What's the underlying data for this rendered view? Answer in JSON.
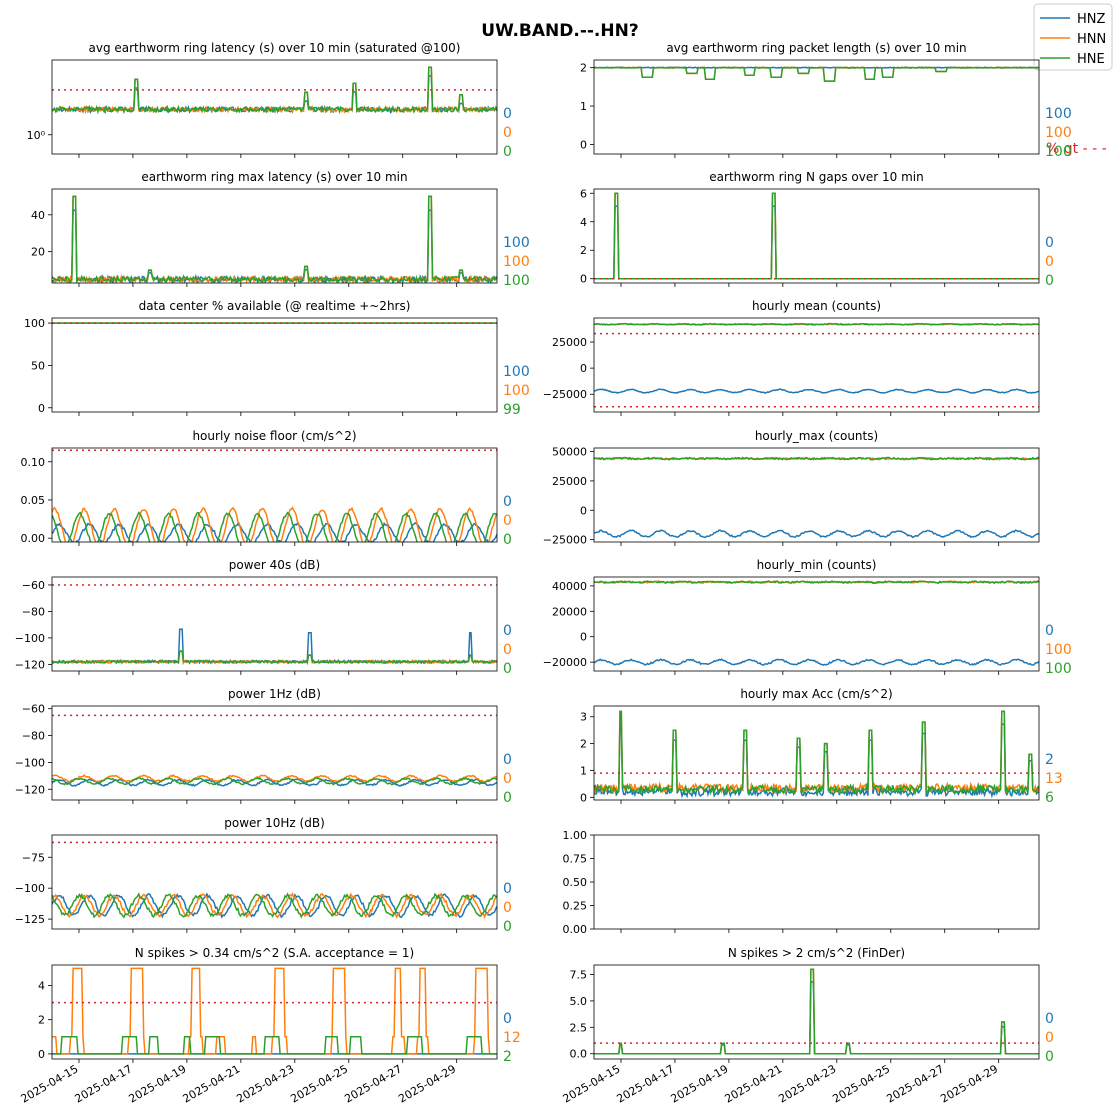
{
  "figure": {
    "title": "UW.BAND.--.HN?",
    "x_tick_labels": [
      "2025-04-15",
      "2025-04-17",
      "2025-04-19",
      "2025-04-21",
      "2025-04-23",
      "2025-04-25",
      "2025-04-27",
      "2025-04-29"
    ],
    "legend": [
      {
        "name": "HNZ",
        "color": "#1f77b4"
      },
      {
        "name": "HNN",
        "color": "#ff7f0e"
      },
      {
        "name": "HNE",
        "color": "#2ca02c"
      }
    ],
    "threshold_color": "#d62728",
    "note_text": "% gt - - -"
  },
  "chart_data": [
    {
      "type": "line",
      "title": "avg earthworm ring latency (s)   over 10 min (saturated @100)",
      "yscale": "log",
      "yticks": [
        {
          "label": "10⁰",
          "v": 1
        }
      ],
      "ylim": [
        0.7,
        4
      ],
      "threshold": 2.3,
      "base": [
        1.6,
        1.6,
        1.6
      ],
      "noise": 0.07,
      "spikes": [
        [
          0.19,
          2.8
        ],
        [
          0.57,
          2.2
        ],
        [
          0.68,
          2.6
        ],
        [
          0.85,
          3.5
        ],
        [
          0.92,
          2.1
        ]
      ],
      "pct": [
        "0",
        "0",
        "0"
      ]
    },
    {
      "type": "line",
      "title": "avg earthworm ring packet length (s)   over 10 min",
      "yticks": [
        {
          "label": "0",
          "v": 0
        },
        {
          "label": "1",
          "v": 1
        },
        {
          "label": "2",
          "v": 2
        }
      ],
      "ylim": [
        -0.25,
        2.2
      ],
      "base": [
        2.0,
        2.0,
        2.0
      ],
      "noise": 0.01,
      "dips": [
        [
          0.12,
          1.75
        ],
        [
          0.22,
          1.85
        ],
        [
          0.26,
          1.7
        ],
        [
          0.35,
          1.8
        ],
        [
          0.41,
          1.75
        ],
        [
          0.47,
          1.85
        ],
        [
          0.53,
          1.65
        ],
        [
          0.62,
          1.7
        ],
        [
          0.66,
          1.75
        ],
        [
          0.78,
          1.9
        ]
      ],
      "pct": [
        "100",
        "100",
        "100"
      ]
    },
    {
      "type": "line",
      "title": "earthworm ring max latency (s)   over 10 min",
      "yticks": [
        {
          "label": "20",
          "v": 20
        },
        {
          "label": "40",
          "v": 40
        }
      ],
      "ylim": [
        3,
        54
      ],
      "base": [
        5,
        5,
        5
      ],
      "noise": 1.5,
      "spikes": [
        [
          0.05,
          50
        ],
        [
          0.85,
          50
        ],
        [
          0.22,
          10
        ],
        [
          0.57,
          12
        ],
        [
          0.92,
          10
        ]
      ],
      "pct": [
        "100",
        "100",
        "100"
      ]
    },
    {
      "type": "line",
      "title": "earthworm ring N gaps   over 10 min",
      "yticks": [
        {
          "label": "0",
          "v": 0
        },
        {
          "label": "2",
          "v": 2
        },
        {
          "label": "4",
          "v": 4
        },
        {
          "label": "6",
          "v": 6
        }
      ],
      "ylim": [
        -0.3,
        6.3
      ],
      "threshold": 0,
      "base": [
        0,
        0,
        0
      ],
      "noise": 0,
      "spikes": [
        [
          0.05,
          6
        ],
        [
          0.405,
          6
        ]
      ],
      "pct": [
        "0",
        "0",
        "0"
      ]
    },
    {
      "type": "line",
      "title": "data center % available (@ realtime +~2hrs)",
      "yticks": [
        {
          "label": "0",
          "v": 0
        },
        {
          "label": "50",
          "v": 50
        },
        {
          "label": "100",
          "v": 100
        }
      ],
      "ylim": [
        -5,
        106
      ],
      "threshold": 100,
      "base": [
        100,
        100,
        100
      ],
      "noise": 0,
      "pct": [
        "100",
        "100",
        "99"
      ]
    },
    {
      "type": "line",
      "title": "hourly mean (counts)",
      "yticks": [
        {
          "label": "−25000",
          "v": -25000
        },
        {
          "label": "0",
          "v": 0
        },
        {
          "label": "25000",
          "v": 25000
        }
      ],
      "ylim": [
        -42000,
        48000
      ],
      "threshold": [
        33000,
        -37000
      ],
      "base": [
        -22000,
        42000,
        42000
      ],
      "noise": 400,
      "wave": [
        [
          1500,
          0
        ],
        [
          300,
          0
        ],
        [
          300,
          0
        ]
      ],
      "pct": [
        "",
        "",
        ""
      ]
    },
    {
      "type": "line",
      "title": "hourly noise floor (cm/s^2)",
      "yticks": [
        {
          "label": "0.00",
          "v": 0
        },
        {
          "label": "0.05",
          "v": 0.05
        },
        {
          "label": "0.10",
          "v": 0.1
        }
      ],
      "ylim": [
        -0.005,
        0.118
      ],
      "threshold": 0.115,
      "base": [
        0.006,
        0.013,
        0.01
      ],
      "noise": 0.002,
      "wave": [
        [
          0.012,
          0
        ],
        [
          0.025,
          0
        ],
        [
          0.022,
          0
        ]
      ],
      "pct": [
        "0",
        "0",
        "0"
      ]
    },
    {
      "type": "line",
      "title": "hourly_max (counts)",
      "yticks": [
        {
          "label": "−25000",
          "v": -25000
        },
        {
          "label": "0",
          "v": 0
        },
        {
          "label": "25000",
          "v": 25000
        },
        {
          "label": "50000",
          "v": 50000
        }
      ],
      "ylim": [
        -27000,
        53000
      ],
      "base": [
        -20000,
        44000,
        44000
      ],
      "noise": 700,
      "wave": [
        [
          2500,
          0
        ],
        [
          300,
          0
        ],
        [
          300,
          0
        ]
      ],
      "pct": [
        "",
        "",
        ""
      ]
    },
    {
      "type": "line",
      "title": "power 40s (dB)",
      "yticks": [
        {
          "label": "−120",
          "v": -120
        },
        {
          "label": "−100",
          "v": -100
        },
        {
          "label": "−80",
          "v": -80
        },
        {
          "label": "−60",
          "v": -60
        }
      ],
      "ylim": [
        -125,
        -54
      ],
      "threshold": -60,
      "base": [
        -118,
        -118,
        -118
      ],
      "noise": 1,
      "spikes": [
        [
          0.29,
          -110
        ],
        [
          0.58,
          -113
        ],
        [
          0.94,
          -113
        ]
      ],
      "pct": [
        "0",
        "0",
        "0"
      ]
    },
    {
      "type": "line",
      "title": "hourly_min (counts)",
      "yticks": [
        {
          "label": "−20000",
          "v": -20000
        },
        {
          "label": "0",
          "v": 0
        },
        {
          "label": "20000",
          "v": 20000
        },
        {
          "label": "40000",
          "v": 40000
        }
      ],
      "ylim": [
        -27000,
        47000
      ],
      "base": [
        -20000,
        43000,
        43000
      ],
      "noise": 600,
      "wave": [
        [
          1800,
          0
        ],
        [
          300,
          0
        ],
        [
          300,
          0
        ]
      ],
      "pct": [
        "0",
        "100",
        "100"
      ]
    },
    {
      "type": "line",
      "title": "power 1Hz (dB)",
      "yticks": [
        {
          "label": "−120",
          "v": -120
        },
        {
          "label": "−100",
          "v": -100
        },
        {
          "label": "−80",
          "v": -80
        },
        {
          "label": "−60",
          "v": -60
        }
      ],
      "ylim": [
        -128,
        -58
      ],
      "threshold": -65,
      "base": [
        -115,
        -112,
        -114
      ],
      "noise": 0.6,
      "wave": [
        [
          2,
          0
        ],
        [
          2,
          0
        ],
        [
          2,
          0
        ]
      ],
      "pct": [
        "0",
        "0",
        "0"
      ]
    },
    {
      "type": "line",
      "title": "hourly max Acc (cm/s^2)",
      "yticks": [
        {
          "label": "0",
          "v": 0
        },
        {
          "label": "1",
          "v": 1
        },
        {
          "label": "2",
          "v": 2
        },
        {
          "label": "3",
          "v": 3
        }
      ],
      "ylim": [
        -0.1,
        3.4
      ],
      "threshold": 0.9,
      "base": [
        0.2,
        0.35,
        0.3
      ],
      "noise": 0.15,
      "spikes": [
        [
          0.06,
          3.2
        ],
        [
          0.18,
          2.5
        ],
        [
          0.34,
          2.5
        ],
        [
          0.46,
          2.2
        ],
        [
          0.52,
          2.0
        ],
        [
          0.62,
          2.5
        ],
        [
          0.74,
          2.8
        ],
        [
          0.92,
          3.2
        ],
        [
          0.98,
          1.6
        ]
      ],
      "pct": [
        "2",
        "13",
        "6"
      ]
    },
    {
      "type": "line",
      "title": "power 10Hz (dB)",
      "yticks": [
        {
          "label": "−125",
          "v": -125
        },
        {
          "label": "−100",
          "v": -100
        },
        {
          "label": "−75",
          "v": -75
        }
      ],
      "ylim": [
        -133,
        -57
      ],
      "threshold": -63,
      "base": [
        -114,
        -114,
        -114
      ],
      "noise": 1.5,
      "wave": [
        [
          8,
          0
        ],
        [
          8,
          0
        ],
        [
          8,
          0
        ]
      ],
      "pct": [
        "0",
        "0",
        "0"
      ]
    },
    {
      "type": "line",
      "title": "",
      "yticks": [
        {
          "label": "0.00",
          "v": 0
        },
        {
          "label": "0.25",
          "v": 0.25
        },
        {
          "label": "0.50",
          "v": 0.5
        },
        {
          "label": "0.75",
          "v": 0.75
        },
        {
          "label": "1.00",
          "v": 1
        }
      ],
      "ylim": [
        0,
        1
      ],
      "empty": true,
      "pct": [
        "",
        "",
        ""
      ]
    },
    {
      "type": "line",
      "title": "N spikes > 0.34 cm/s^2 (S.A. acceptance = 1)",
      "yticks": [
        {
          "label": "0",
          "v": 0
        },
        {
          "label": "2",
          "v": 2
        },
        {
          "label": "4",
          "v": 4
        }
      ],
      "ylim": [
        -0.3,
        5.2
      ],
      "threshold": 3,
      "base": [
        0,
        0.3,
        0.2
      ],
      "noise": 0,
      "pulses": true,
      "pct": [
        "0",
        "12",
        "2"
      ]
    },
    {
      "type": "line",
      "title": "N spikes > 2 cm/s^2 (FinDer)",
      "yticks": [
        {
          "label": "0.0",
          "v": 0
        },
        {
          "label": "2.5",
          "v": 2.5
        },
        {
          "label": "5.0",
          "v": 5
        },
        {
          "label": "7.5",
          "v": 7.5
        }
      ],
      "ylim": [
        -0.5,
        8.4
      ],
      "threshold": 1,
      "base": [
        0,
        0,
        0
      ],
      "noise": 0,
      "spikes": [
        [
          0.49,
          8
        ],
        [
          0.06,
          1
        ],
        [
          0.29,
          1
        ],
        [
          0.57,
          1
        ],
        [
          0.92,
          3
        ]
      ],
      "pct": [
        "0",
        "0",
        "0"
      ]
    }
  ]
}
